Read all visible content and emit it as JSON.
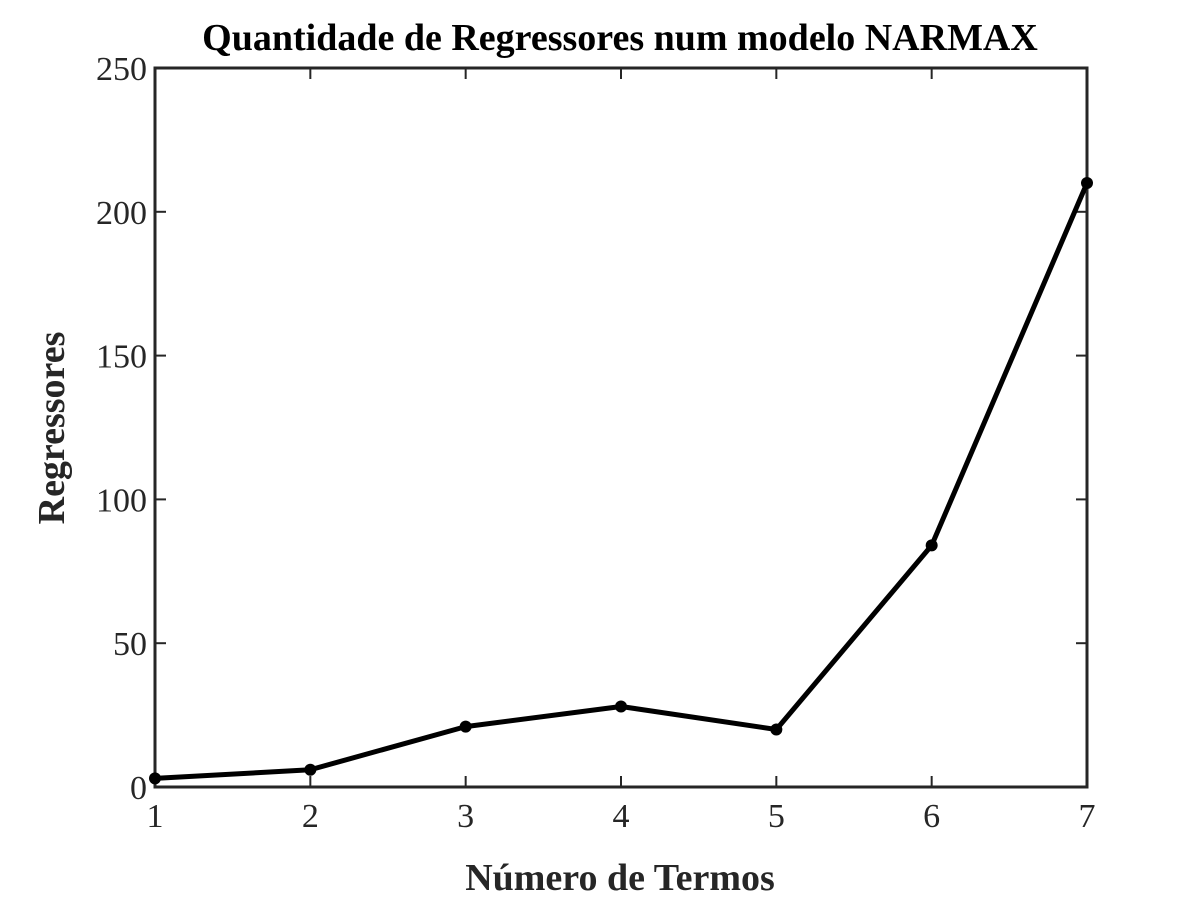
{
  "chart_data": {
    "type": "line",
    "title": "Quantidade de Regressores num modelo NARMAX",
    "xlabel": "Número de Termos",
    "ylabel": "Regressores",
    "x": [
      1,
      2,
      3,
      4,
      5,
      6,
      7
    ],
    "series": [
      {
        "values": [
          3,
          6,
          21,
          28,
          20,
          84,
          210
        ]
      }
    ],
    "xlim": [
      1,
      7
    ],
    "ylim": [
      0,
      250
    ],
    "xticks": [
      1,
      2,
      3,
      4,
      5,
      6,
      7
    ],
    "yticks": [
      0,
      50,
      100,
      150,
      200,
      250
    ],
    "xtick_labels": [
      "1",
      "2",
      "3",
      "4",
      "5",
      "6",
      "7"
    ],
    "ytick_labels": [
      "0",
      "50",
      "100",
      "150",
      "200",
      "250"
    ],
    "grid": false,
    "legend": "none",
    "line_color": "#000000",
    "axis_color": "#262626",
    "marker": "dot"
  }
}
